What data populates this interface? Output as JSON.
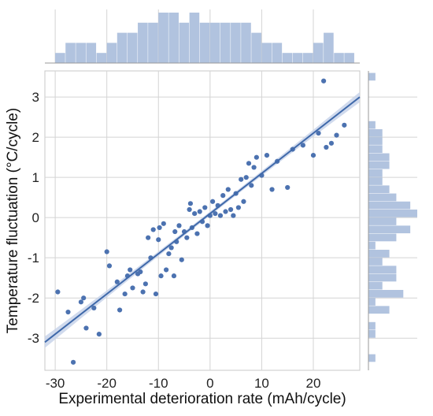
{
  "chart_data": {
    "type": "scatter",
    "xlabel": "Experimental deterioration rate (mAh/cycle)",
    "ylabel": "Temperature fluctuation (°C/cycle)",
    "xlim": [
      -32,
      29
    ],
    "ylim": [
      -3.8,
      3.65
    ],
    "x_ticks": [
      -30,
      -20,
      -10,
      0,
      10,
      20
    ],
    "y_ticks": [
      -3,
      -2,
      -1,
      0,
      1,
      2,
      3
    ],
    "x_tick_labels": [
      "-30",
      "-20",
      "-10",
      "0",
      "10",
      "20"
    ],
    "y_tick_labels": [
      "-3",
      "-2",
      "-1",
      "0",
      "1",
      "2",
      "3"
    ],
    "grid": true,
    "marginal_histograms": true,
    "regression": {
      "slope": 0.1,
      "intercept": 0.1,
      "x_range": [
        -32,
        29
      ]
    },
    "colors": {
      "points": "#4c72b0",
      "line": "#3f69aa",
      "band": "#c8d4ea",
      "hist": "#a8bcdc",
      "grid": "#d4d4d4"
    },
    "series": [
      {
        "points": [
          [
            -29.5,
            -1.85
          ],
          [
            -27.5,
            -2.35
          ],
          [
            -26.5,
            -3.6
          ],
          [
            -25,
            -2.1
          ],
          [
            -24.5,
            -2.0
          ],
          [
            -24,
            -2.75
          ],
          [
            -22.5,
            -2.25
          ],
          [
            -21.5,
            -2.9
          ],
          [
            -20,
            -0.85
          ],
          [
            -19.5,
            -1.2
          ],
          [
            -18,
            -1.6
          ],
          [
            -17.5,
            -2.3
          ],
          [
            -16.5,
            -1.9
          ],
          [
            -16,
            -1.45
          ],
          [
            -15.5,
            -1.3
          ],
          [
            -15,
            -1.75
          ],
          [
            -14,
            -1.4
          ],
          [
            -13.5,
            -1.35
          ],
          [
            -13,
            -1.85
          ],
          [
            -12.5,
            -1.65
          ],
          [
            -12,
            -0.5
          ],
          [
            -11.5,
            -1.0
          ],
          [
            -11,
            -0.3
          ],
          [
            -10.5,
            -1.9
          ],
          [
            -10,
            -0.55
          ],
          [
            -9.5,
            -1.45
          ],
          [
            -9,
            -0.15
          ],
          [
            -8.5,
            -1.3
          ],
          [
            -8,
            -0.9
          ],
          [
            -7.5,
            -0.75
          ],
          [
            -7,
            -1.45
          ],
          [
            -6.5,
            -0.6
          ],
          [
            -6,
            -0.2
          ],
          [
            -5.5,
            -1.05
          ],
          [
            -5,
            -0.35
          ],
          [
            -4.5,
            -0.5
          ],
          [
            -4,
            0.2
          ],
          [
            -3.5,
            -0.25
          ],
          [
            -3,
            0.1
          ],
          [
            -2.5,
            -0.4
          ],
          [
            -2,
            0.15
          ],
          [
            -1.5,
            -0.1
          ],
          [
            -1,
            0.25
          ],
          [
            -0.5,
            -0.2
          ],
          [
            0,
            0.05
          ],
          [
            0.5,
            0.4
          ],
          [
            1,
            0.1
          ],
          [
            1.5,
            0.3
          ],
          [
            2,
            0.05
          ],
          [
            2.5,
            0.55
          ],
          [
            3,
            0.15
          ],
          [
            3.5,
            0.7
          ],
          [
            4,
            0.2
          ],
          [
            4.5,
            0.05
          ],
          [
            5,
            0.6
          ],
          [
            5.5,
            0.25
          ],
          [
            6,
            0.95
          ],
          [
            6.5,
            0.4
          ],
          [
            7,
            1.0
          ],
          [
            7.5,
            1.35
          ],
          [
            8,
            0.8
          ],
          [
            8.5,
            1.25
          ],
          [
            9,
            1.5
          ],
          [
            10,
            1.05
          ],
          [
            11,
            1.55
          ],
          [
            12,
            0.7
          ],
          [
            13,
            1.4
          ],
          [
            15,
            0.75
          ],
          [
            16,
            1.7
          ],
          [
            18,
            1.8
          ],
          [
            20,
            1.55
          ],
          [
            21,
            2.1
          ],
          [
            22,
            3.4
          ],
          [
            22.5,
            1.75
          ],
          [
            23.5,
            1.85
          ],
          [
            24.5,
            2.05
          ],
          [
            26,
            2.3
          ],
          [
            -9.8,
            -0.25
          ],
          [
            -6.8,
            -0.35
          ],
          [
            -3.8,
            0.35
          ]
        ]
      }
    ]
  }
}
